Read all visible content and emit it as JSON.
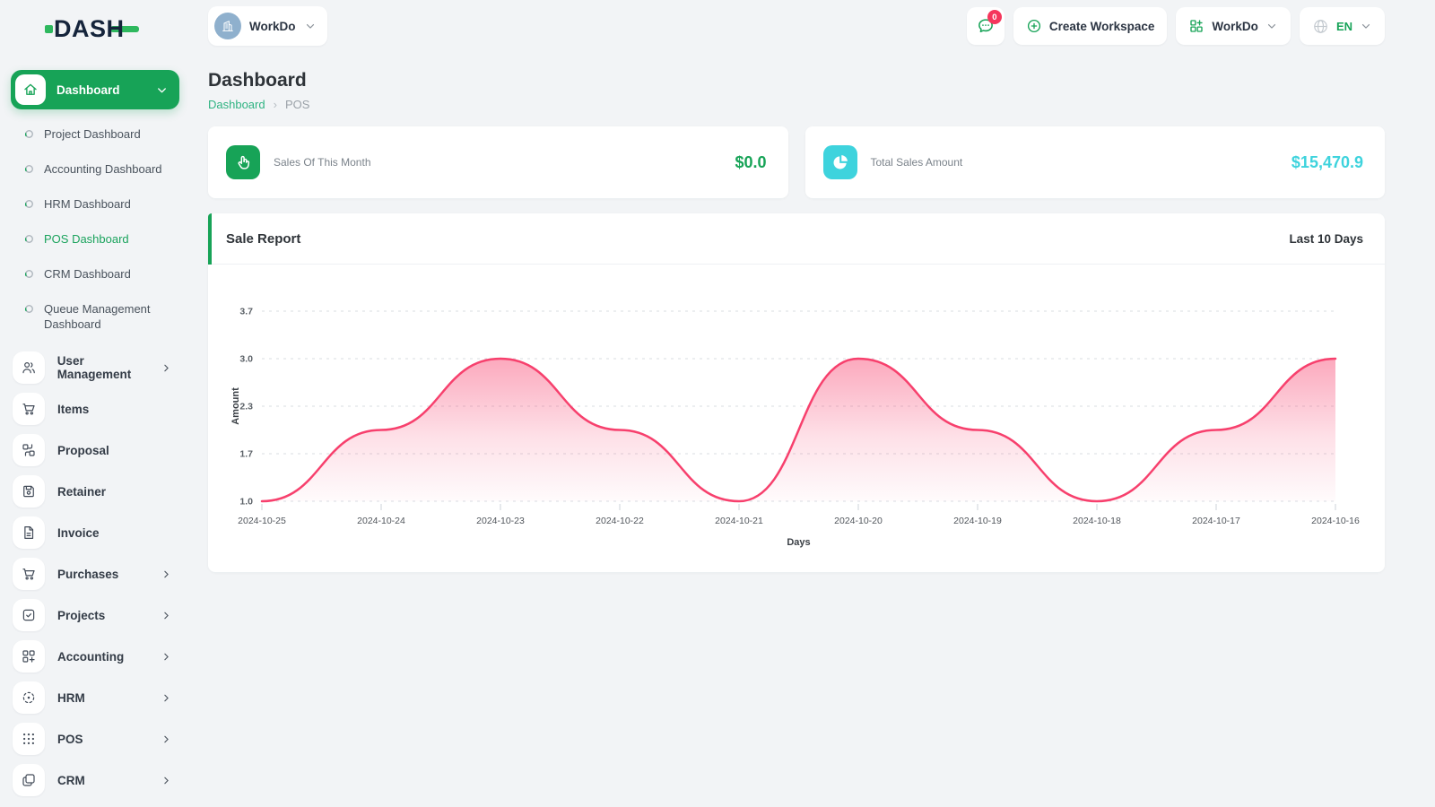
{
  "brand": {
    "logo_text": "DASH"
  },
  "topbar": {
    "workspace_selector": {
      "label": "WorkDo"
    },
    "messages_badge": "0",
    "create_workspace_label": "Create Workspace",
    "workspace_switcher_label": "WorkDo",
    "language": "EN"
  },
  "sidebar": {
    "dashboard": {
      "label": "Dashboard",
      "active_child": "POS Dashboard",
      "children": [
        "Project Dashboard",
        "Accounting Dashboard",
        "HRM Dashboard",
        "POS Dashboard",
        "CRM Dashboard",
        "Queue Management Dashboard"
      ]
    },
    "items": [
      {
        "label": "User Management",
        "icon": "users-icon",
        "has_children": true
      },
      {
        "label": "Items",
        "icon": "cart-icon",
        "has_children": false
      },
      {
        "label": "Proposal",
        "icon": "proposal-icon",
        "has_children": false
      },
      {
        "label": "Retainer",
        "icon": "retainer-icon",
        "has_children": false
      },
      {
        "label": "Invoice",
        "icon": "invoice-icon",
        "has_children": false
      },
      {
        "label": "Purchases",
        "icon": "cart-icon",
        "has_children": true
      },
      {
        "label": "Projects",
        "icon": "projects-icon",
        "has_children": true
      },
      {
        "label": "Accounting",
        "icon": "accounting-icon",
        "has_children": true
      },
      {
        "label": "HRM",
        "icon": "hrm-icon",
        "has_children": true
      },
      {
        "label": "POS",
        "icon": "pos-icon",
        "has_children": true
      },
      {
        "label": "CRM",
        "icon": "crm-icon",
        "has_children": true
      }
    ]
  },
  "page": {
    "title": "Dashboard",
    "breadcrumb": [
      "Dashboard",
      "POS"
    ],
    "breadcrumb_separator": "›"
  },
  "stats": [
    {
      "label": "Sales Of This Month",
      "value": "$0.0",
      "icon": "tap-icon",
      "color": "#17a357"
    },
    {
      "label": "Total Sales Amount",
      "value": "$15,470.9",
      "icon": "pie-chart-icon",
      "color": "#3ed3dd"
    }
  ],
  "chart_card": {
    "title": "Sale Report",
    "range_label": "Last 10 Days"
  },
  "chart_data": {
    "type": "area",
    "title": "Sale Report",
    "x": [
      "2024-10-25",
      "2024-10-24",
      "2024-10-23",
      "2024-10-22",
      "2024-10-21",
      "2024-10-20",
      "2024-10-19",
      "2024-10-18",
      "2024-10-17",
      "2024-10-16"
    ],
    "values": [
      1,
      2,
      3,
      2,
      1,
      3,
      2,
      1,
      2,
      3
    ],
    "xlabel": "Days",
    "ylabel": "Amount",
    "ytick_labels": [
      "1.0",
      "1.7",
      "2.3",
      "3.0",
      "3.7"
    ],
    "ylim": [
      1.0,
      3.7
    ],
    "grid": "dashed-horizontal",
    "legend": "none",
    "line_color": "#f7406d",
    "fill_style": "pink-gradient-to-transparent"
  },
  "colors": {
    "accent_green": "#17a357",
    "logo_green": "#2eb85e",
    "breadcrumb_green": "#2fb382",
    "chart_pink": "#f7406d",
    "cyan": "#3ed3dd",
    "badge_red": "#f5365c"
  }
}
